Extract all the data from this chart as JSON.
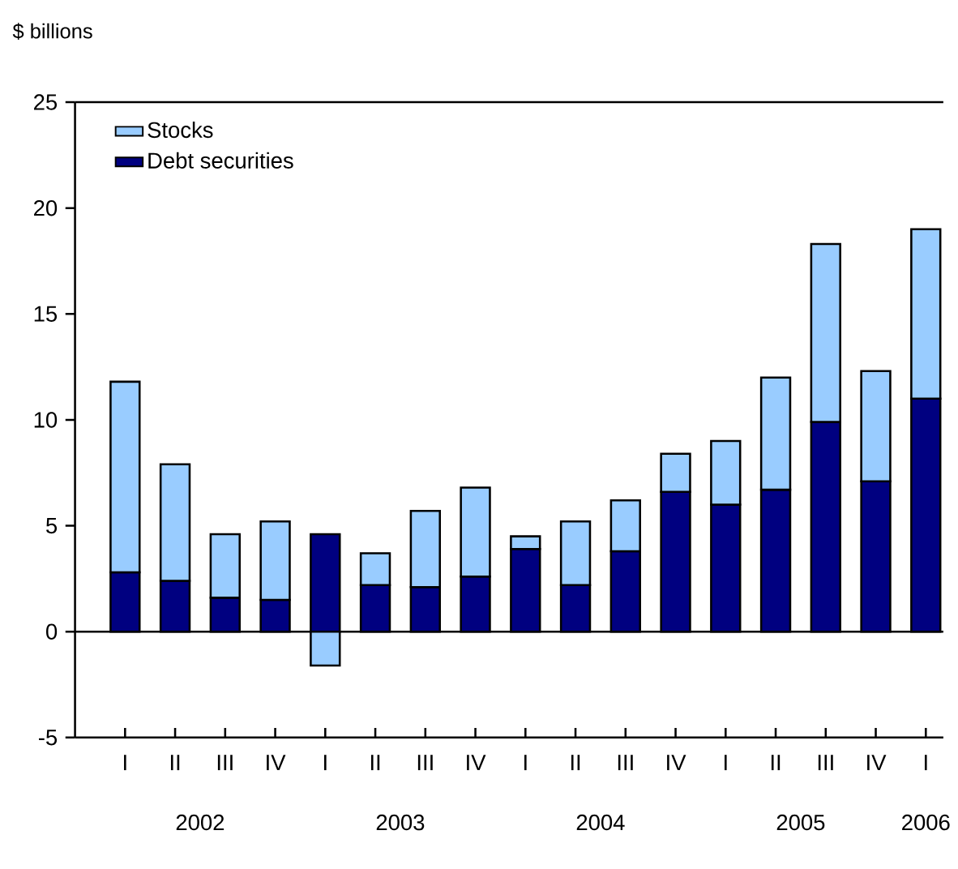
{
  "chart_data": {
    "type": "bar",
    "stacked": true,
    "ylabel": "$ billions",
    "categories": [
      "I",
      "II",
      "III",
      "IV",
      "I",
      "II",
      "III",
      "IV",
      "I",
      "II",
      "III",
      "IV",
      "I",
      "II",
      "III",
      "IV",
      "I"
    ],
    "series": [
      {
        "name": "Debt securities",
        "color": "#000080",
        "values": [
          2.8,
          2.4,
          1.6,
          1.5,
          4.6,
          2.2,
          2.1,
          2.6,
          3.9,
          2.2,
          3.8,
          6.6,
          6.0,
          6.7,
          9.9,
          7.1,
          11.0
        ]
      },
      {
        "name": "Stocks",
        "color": "#99ccff",
        "values": [
          9.0,
          5.5,
          3.0,
          3.7,
          -1.6,
          1.5,
          3.6,
          4.2,
          0.6,
          3.0,
          2.4,
          1.8,
          3.0,
          5.3,
          8.4,
          5.2,
          8.0
        ]
      }
    ],
    "ylim": [
      -5,
      25
    ],
    "yticks": [
      -5,
      0,
      5,
      10,
      15,
      20,
      25
    ],
    "legend": "top left",
    "annotations": [
      "2002",
      "2003",
      "2004",
      "2005",
      "2006"
    ]
  }
}
